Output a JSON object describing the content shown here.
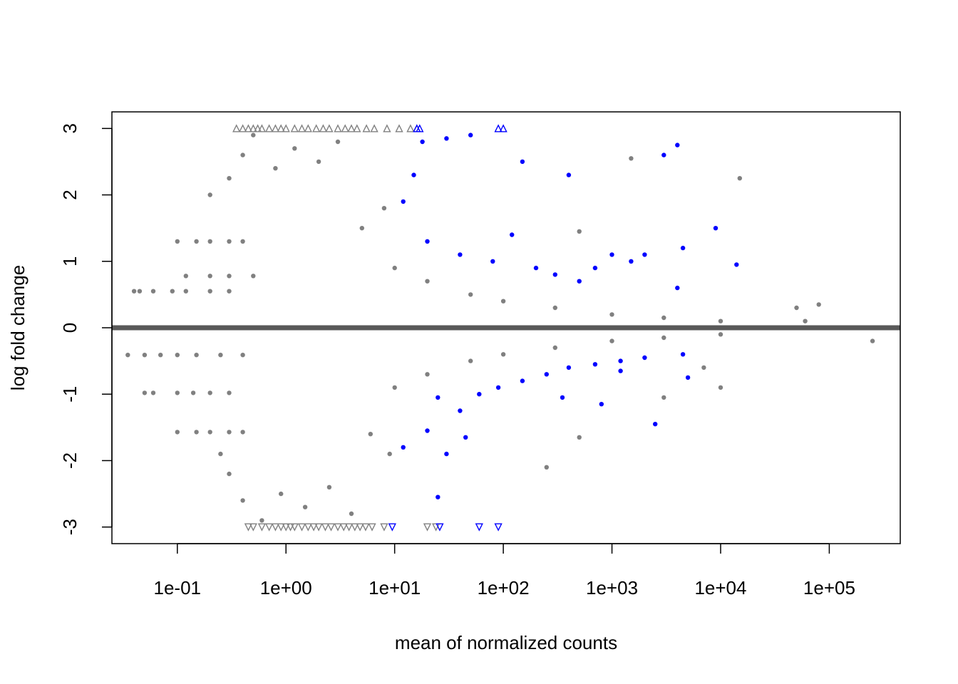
{
  "chart_data": {
    "type": "scatter",
    "title": "",
    "xlabel": "mean of normalized counts",
    "ylabel": "log fold change",
    "x_scale": "log10",
    "xlim": [
      0.025,
      450000
    ],
    "ylim": [
      -3.25,
      3.25
    ],
    "x_ticks": [
      {
        "value": 0.1,
        "label": "1e-01"
      },
      {
        "value": 1,
        "label": "1e+00"
      },
      {
        "value": 10,
        "label": "1e+01"
      },
      {
        "value": 100,
        "label": "1e+02"
      },
      {
        "value": 1000,
        "label": "1e+03"
      },
      {
        "value": 10000,
        "label": "1e+04"
      },
      {
        "value": 100000,
        "label": "1e+05"
      }
    ],
    "y_ticks": [
      {
        "value": -3,
        "label": "-3"
      },
      {
        "value": -2,
        "label": "-2"
      },
      {
        "value": -1,
        "label": "-1"
      },
      {
        "value": 0,
        "label": "0"
      },
      {
        "value": 1,
        "label": "1"
      },
      {
        "value": 2,
        "label": "2"
      },
      {
        "value": 3,
        "label": "3"
      }
    ],
    "grid": false,
    "legend": "none",
    "reference_line": {
      "y": 0,
      "color": "#595959"
    },
    "colors": {
      "not_significant": "#808080",
      "significant": "#0000ff"
    },
    "series": [
      {
        "points": [
          [
            0.04,
            0.55
          ],
          [
            0.045,
            0.55
          ],
          [
            0.06,
            0.55
          ],
          [
            0.09,
            0.55
          ],
          [
            0.12,
            0.55
          ],
          [
            0.2,
            0.55
          ],
          [
            0.3,
            0.55
          ],
          [
            0.035,
            -0.41
          ],
          [
            0.05,
            -0.41
          ],
          [
            0.07,
            -0.41
          ],
          [
            0.1,
            -0.41
          ],
          [
            0.15,
            -0.41
          ],
          [
            0.25,
            -0.41
          ],
          [
            0.4,
            -0.41
          ],
          [
            0.05,
            -0.98
          ],
          [
            0.06,
            -0.98
          ],
          [
            0.1,
            -0.98
          ],
          [
            0.14,
            -0.98
          ],
          [
            0.2,
            -0.98
          ],
          [
            0.3,
            -0.98
          ],
          [
            0.1,
            -1.57
          ],
          [
            0.15,
            -1.57
          ],
          [
            0.2,
            -1.57
          ],
          [
            0.3,
            -1.57
          ],
          [
            0.4,
            -1.57
          ],
          [
            0.1,
            1.3
          ],
          [
            0.15,
            1.3
          ],
          [
            0.2,
            1.3
          ],
          [
            0.3,
            1.3
          ],
          [
            0.4,
            1.3
          ],
          [
            0.12,
            0.78
          ],
          [
            0.2,
            0.78
          ],
          [
            0.3,
            0.78
          ],
          [
            0.5,
            0.78
          ],
          [
            0.2,
            2.0
          ],
          [
            0.3,
            2.25
          ],
          [
            0.4,
            2.6
          ],
          [
            0.5,
            2.9
          ],
          [
            0.8,
            2.4
          ],
          [
            1.2,
            2.7
          ],
          [
            2,
            2.5
          ],
          [
            3,
            2.8
          ],
          [
            0.25,
            -1.9
          ],
          [
            0.3,
            -2.2
          ],
          [
            0.4,
            -2.6
          ],
          [
            0.6,
            -2.9
          ],
          [
            0.9,
            -2.5
          ],
          [
            1.5,
            -2.7
          ],
          [
            2.5,
            -2.4
          ],
          [
            4,
            -2.8
          ],
          [
            5,
            1.5
          ],
          [
            8,
            1.8
          ],
          [
            6,
            -1.6
          ],
          [
            9,
            -1.9
          ],
          [
            10,
            0.9
          ],
          [
            20,
            0.7
          ],
          [
            50,
            0.5
          ],
          [
            100,
            0.4
          ],
          [
            300,
            0.3
          ],
          [
            1000,
            0.2
          ],
          [
            3000,
            0.15
          ],
          [
            10000,
            0.1
          ],
          [
            10,
            -0.9
          ],
          [
            20,
            -0.7
          ],
          [
            50,
            -0.5
          ],
          [
            100,
            -0.4
          ],
          [
            300,
            -0.3
          ],
          [
            1000,
            -0.2
          ],
          [
            3000,
            -0.15
          ],
          [
            10000,
            -0.1
          ],
          [
            500,
            -1.65
          ],
          [
            500,
            1.45
          ],
          [
            1500,
            2.55
          ],
          [
            250000,
            -0.2
          ],
          [
            80000,
            0.35
          ],
          [
            60000,
            0.1
          ],
          [
            50000,
            0.3
          ],
          [
            10000,
            -0.9
          ],
          [
            15000,
            2.25
          ],
          [
            3000,
            -1.05
          ],
          [
            7000,
            -0.6
          ],
          [
            250,
            -2.1
          ]
        ],
        "color": "#808080"
      },
      {
        "points": [
          [
            12,
            1.9
          ],
          [
            15,
            2.3
          ],
          [
            18,
            2.8
          ],
          [
            30,
            2.85
          ],
          [
            50,
            2.9
          ],
          [
            150,
            2.5
          ],
          [
            400,
            2.3
          ],
          [
            3000,
            2.6
          ],
          [
            4000,
            2.75
          ],
          [
            20,
            1.3
          ],
          [
            40,
            1.1
          ],
          [
            80,
            1.0
          ],
          [
            120,
            1.4
          ],
          [
            200,
            0.9
          ],
          [
            300,
            0.8
          ],
          [
            500,
            0.7
          ],
          [
            700,
            0.9
          ],
          [
            1000,
            1.1
          ],
          [
            1500,
            1.0
          ],
          [
            2000,
            1.1
          ],
          [
            4500,
            1.2
          ],
          [
            9000,
            1.5
          ],
          [
            14000,
            0.95
          ],
          [
            4000,
            0.6
          ],
          [
            25,
            -1.05
          ],
          [
            40,
            -1.25
          ],
          [
            60,
            -1.0
          ],
          [
            90,
            -0.9
          ],
          [
            150,
            -0.8
          ],
          [
            250,
            -0.7
          ],
          [
            400,
            -0.6
          ],
          [
            700,
            -0.55
          ],
          [
            1200,
            -0.5
          ],
          [
            2000,
            -0.45
          ],
          [
            12,
            -1.8
          ],
          [
            20,
            -1.55
          ],
          [
            30,
            -1.9
          ],
          [
            45,
            -1.65
          ],
          [
            25,
            -2.55
          ],
          [
            2500,
            -1.45
          ],
          [
            5000,
            -0.75
          ],
          [
            4500,
            -0.4
          ],
          [
            800,
            -1.15
          ],
          [
            1200,
            -0.65
          ],
          [
            350,
            -1.05
          ]
        ],
        "color": "#0000ff"
      }
    ],
    "clipped_markers": {
      "upper": {
        "y": 3,
        "shape": "triangle-up",
        "gray_x": [
          0.35,
          0.4,
          0.45,
          0.5,
          0.55,
          0.6,
          0.7,
          0.8,
          0.9,
          1.0,
          1.2,
          1.4,
          1.6,
          1.9,
          2.2,
          2.5,
          3.0,
          3.5,
          4.0,
          4.5,
          5.5,
          6.5,
          8.5,
          11,
          14,
          16
        ],
        "blue_x": [
          16,
          17,
          90,
          100
        ]
      },
      "lower": {
        "y": -3,
        "shape": "triangle-down",
        "gray_x": [
          0.45,
          0.5,
          0.6,
          0.7,
          0.8,
          0.9,
          1.0,
          1.1,
          1.2,
          1.4,
          1.6,
          1.8,
          2.0,
          2.3,
          2.6,
          3.0,
          3.4,
          3.8,
          4.3,
          4.8,
          5.4,
          6.2,
          8.0,
          20,
          24
        ],
        "blue_x": [
          9.5,
          26,
          60,
          90
        ]
      }
    }
  }
}
